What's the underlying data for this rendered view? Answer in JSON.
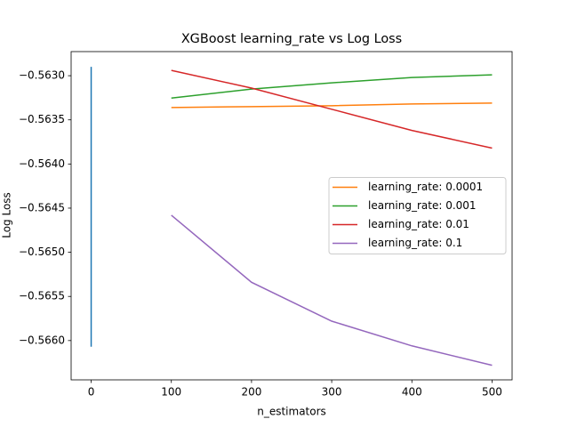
{
  "chart_data": {
    "type": "line",
    "title": "XGBoost learning_rate vs Log Loss",
    "x_label": "n_estimators",
    "y_label": "Log Loss",
    "xlim": [
      -25,
      525
    ],
    "xticks": [
      0,
      100,
      200,
      300,
      400,
      500
    ],
    "ylim": [
      -0.566445,
      -0.562727
    ],
    "yticks": [
      {
        "value": -0.563,
        "label": "−0.5630"
      },
      {
        "value": -0.5635,
        "label": "−0.5635"
      },
      {
        "value": -0.564,
        "label": "−0.5640"
      },
      {
        "value": -0.5645,
        "label": "−0.5645"
      },
      {
        "value": -0.565,
        "label": "−0.5650"
      },
      {
        "value": -0.5655,
        "label": "−0.5655"
      },
      {
        "value": -0.566,
        "label": "−0.5660"
      }
    ],
    "legend": "center right",
    "series": [
      {
        "color": "#1f77b4",
        "x": [
          0,
          0,
          0,
          0
        ],
        "values": [
          -0.5629,
          -0.56337,
          -0.5629,
          -0.56607
        ]
      },
      {
        "name": "learning_rate: 0.0001",
        "color": "#ff7f0e",
        "x": [
          100,
          200,
          300,
          400,
          500
        ],
        "values": [
          -0.56336,
          -0.56335,
          -0.56334,
          -0.56332,
          -0.56331
        ]
      },
      {
        "name": "learning_rate: 0.001",
        "color": "#2ca02c",
        "x": [
          100,
          200,
          300,
          400,
          500
        ],
        "values": [
          -0.563253,
          -0.563152,
          -0.563081,
          -0.56302,
          -0.56299
        ]
      },
      {
        "name": "learning_rate: 0.01",
        "color": "#d62728",
        "x": [
          100,
          200,
          300,
          400,
          500
        ],
        "values": [
          -0.56294,
          -0.56314,
          -0.56338,
          -0.56362,
          -0.56382
        ]
      },
      {
        "name": "learning_rate: 0.1",
        "color": "#9467bd",
        "x": [
          100,
          200,
          300,
          400,
          500
        ],
        "values": [
          -0.56458,
          -0.56534,
          -0.56578,
          -0.56606,
          -0.56628
        ]
      }
    ]
  }
}
